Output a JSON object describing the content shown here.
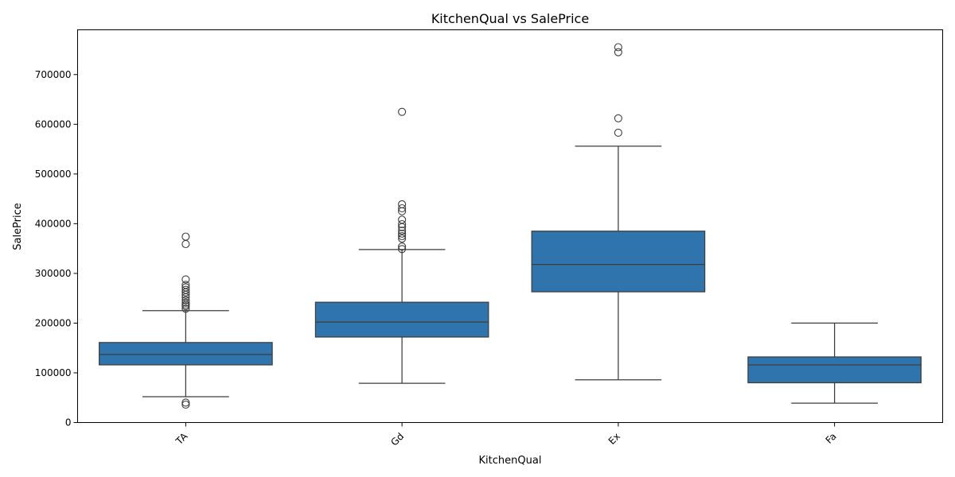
{
  "chart_data": {
    "type": "box",
    "title": "KitchenQual vs SalePrice",
    "xlabel": "KitchenQual",
    "ylabel": "SalePrice",
    "ylim": [
      0,
      790000
    ],
    "yticks": [
      0,
      100000,
      200000,
      300000,
      400000,
      500000,
      600000,
      700000
    ],
    "box_color": "#2f74ad",
    "categories": [
      "TA",
      "Gd",
      "Ex",
      "Fa"
    ],
    "boxes": [
      {
        "category": "TA",
        "whisker_low": 52000,
        "q1": 116000,
        "median": 137000,
        "q3": 161000,
        "whisker_high": 225000,
        "outliers": [
          374000,
          359000,
          288000,
          277000,
          272000,
          267000,
          262000,
          257000,
          252000,
          246000,
          241000,
          237000,
          234000,
          229000,
          40000,
          36000
        ]
      },
      {
        "category": "Gd",
        "whisker_low": 79000,
        "q1": 172000,
        "median": 202000,
        "q3": 242000,
        "whisker_high": 348000,
        "outliers": [
          625000,
          439000,
          431000,
          425000,
          408000,
          399000,
          393000,
          386000,
          380000,
          375000,
          370000,
          354000,
          349000
        ]
      },
      {
        "category": "Ex",
        "whisker_low": 86000,
        "q1": 263000,
        "median": 318000,
        "q3": 385000,
        "whisker_high": 556000,
        "outliers": [
          755000,
          745000,
          612000,
          583000
        ]
      },
      {
        "category": "Fa",
        "whisker_low": 39000,
        "q1": 80000,
        "median": 116000,
        "q3": 132000,
        "whisker_high": 200000,
        "outliers": []
      }
    ]
  }
}
